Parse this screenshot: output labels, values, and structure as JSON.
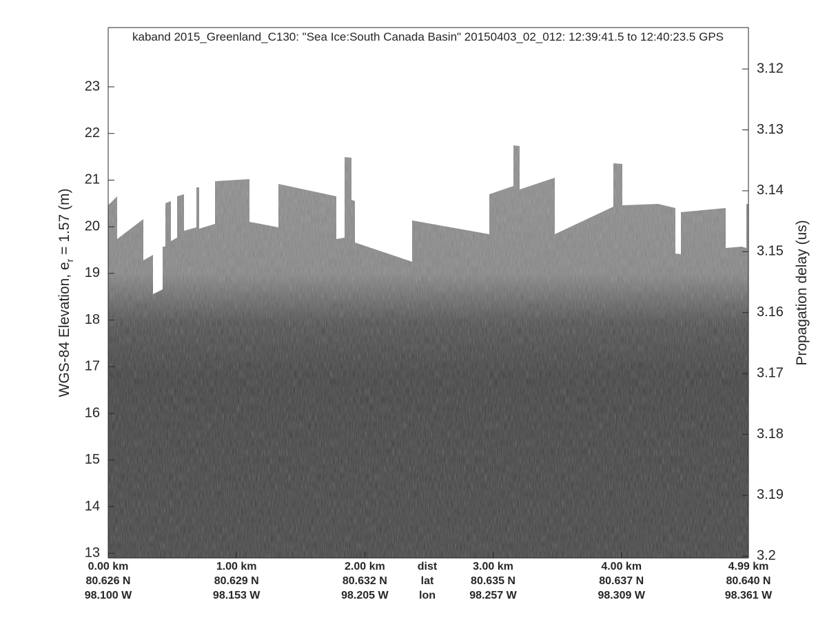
{
  "chart_data": {
    "type": "echogram",
    "title": "kaband 2015_Greenland_C130: \"Sea Ice:South Canada Basin\"  20150403_02_012: 12:39:41.5 to 12:40:23.5 GPS",
    "ylabel": {
      "main": "WGS-84 Elevation, e",
      "sub": "r",
      "tail": " = 1.57 (m)"
    },
    "y2label": "Propagation delay (us)",
    "ylim": [
      12.9,
      24.27
    ],
    "yticks": [
      13,
      14,
      15,
      16,
      17,
      18,
      19,
      20,
      21,
      22,
      23
    ],
    "y2lim": [
      3.2003,
      3.1132
    ],
    "y2ticks": [
      3.12,
      3.13,
      3.14,
      3.15,
      3.16,
      3.17,
      3.18,
      3.19,
      3.2
    ],
    "xlim": [
      0,
      4.99
    ],
    "xticks": [
      {
        "value": 0,
        "label": "0.00 km"
      },
      {
        "value": 1,
        "label": "1.00 km"
      },
      {
        "value": 2,
        "label": "2.00 km"
      },
      {
        "value": 3,
        "label": "3.00 km"
      },
      {
        "value": 4,
        "label": "4.00 km"
      },
      {
        "value": 4.99,
        "label": "4.99 km"
      }
    ],
    "lat_labels": [
      "80.626 N",
      "80.629 N",
      "80.632 N",
      "80.635 N",
      "80.637 N",
      "80.640 N"
    ],
    "lon_labels": [
      "98.100 W",
      "98.153 W",
      "98.205 W",
      "98.257 W",
      "98.309 W",
      "98.361 W"
    ],
    "row_names": [
      "dist",
      "lat",
      "lon"
    ]
  }
}
